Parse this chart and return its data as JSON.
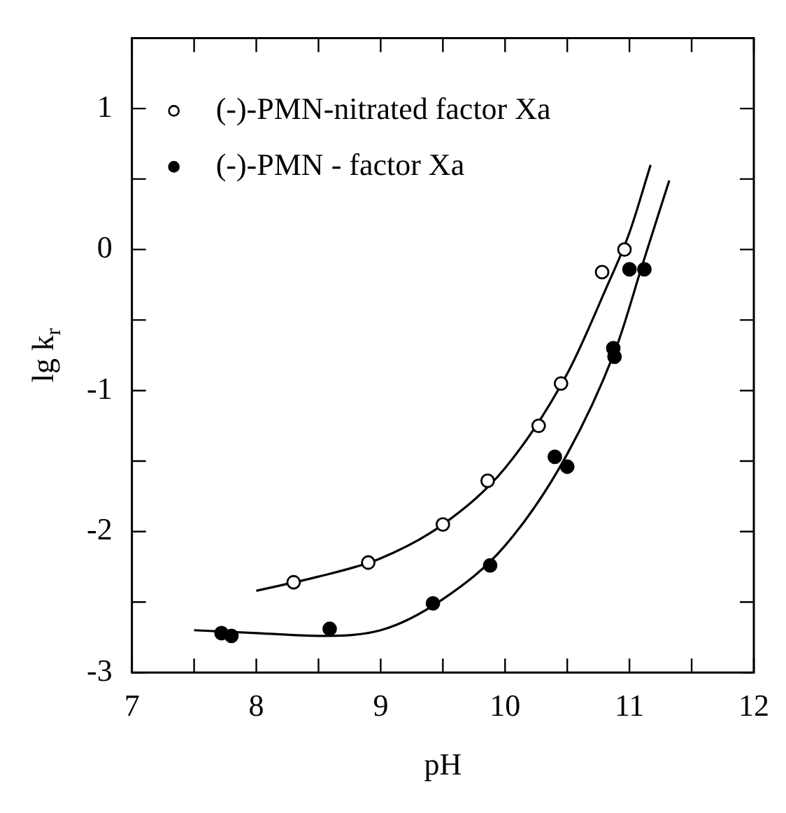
{
  "chart_data": {
    "type": "scatter",
    "xlabel": "pH",
    "ylabel": "lg k$_{r}$",
    "xlim": [
      7,
      12
    ],
    "xticks": [
      7,
      {
        "value": 7.5,
        "label": null
      },
      8,
      {
        "value": 8.5,
        "label": null
      },
      9,
      {
        "value": 9.5,
        "label": null
      },
      10,
      {
        "value": 10.5,
        "label": null
      },
      11,
      {
        "value": 11.5,
        "label": null
      },
      12
    ],
    "ylim": [
      -3,
      1.5
    ],
    "yticks": [
      -3,
      {
        "value": -2.5,
        "label": null
      },
      -2,
      {
        "value": -1.5,
        "label": null
      },
      -1,
      {
        "value": -0.5,
        "label": null
      },
      0,
      {
        "value": 0.5,
        "label": null
      },
      1
    ],
    "grid": false,
    "legend": "top left",
    "marker": "circle",
    "series": [
      {
        "name": "(-)-PMN-nitrated factor Xa",
        "color": "#000000",
        "x": [
          8.3,
          8.9,
          9.5,
          9.86,
          10.27,
          10.45,
          10.78,
          10.96
        ],
        "values": [
          -2.36,
          -2.22,
          -1.95,
          -1.64,
          -1.25,
          -0.95,
          -0.16,
          0.0
        ]
      },
      {
        "name": "(-)-PMN - factor Xa",
        "color": "#000000",
        "x": [
          7.72,
          7.8,
          8.59,
          9.42,
          9.88,
          10.4,
          10.5,
          10.87,
          10.88,
          11.0,
          11.12
        ],
        "values": [
          -2.72,
          -2.74,
          -2.69,
          -2.51,
          -2.24,
          -1.47,
          -1.54,
          -0.7,
          -0.76,
          -0.14,
          -0.14
        ]
      },
      {
        "type": "line",
        "color": "#000000",
        "marker": "none",
        "x": [
          8.0,
          8.5,
          9.0,
          9.5,
          10.0,
          10.5,
          10.8,
          11.0,
          11.17
        ],
        "values": [
          -2.42,
          -2.32,
          -2.19,
          -1.95,
          -1.55,
          -0.88,
          -0.3,
          0.12,
          0.6
        ]
      },
      {
        "type": "line",
        "color": "#000000",
        "marker": "none",
        "x": [
          7.5,
          8.0,
          8.5,
          9.0,
          9.5,
          10.0,
          10.5,
          10.9,
          11.1,
          11.32
        ],
        "values": [
          -2.7,
          -2.72,
          -2.74,
          -2.7,
          -2.48,
          -2.1,
          -1.45,
          -0.68,
          -0.12,
          0.49
        ]
      }
    ]
  }
}
